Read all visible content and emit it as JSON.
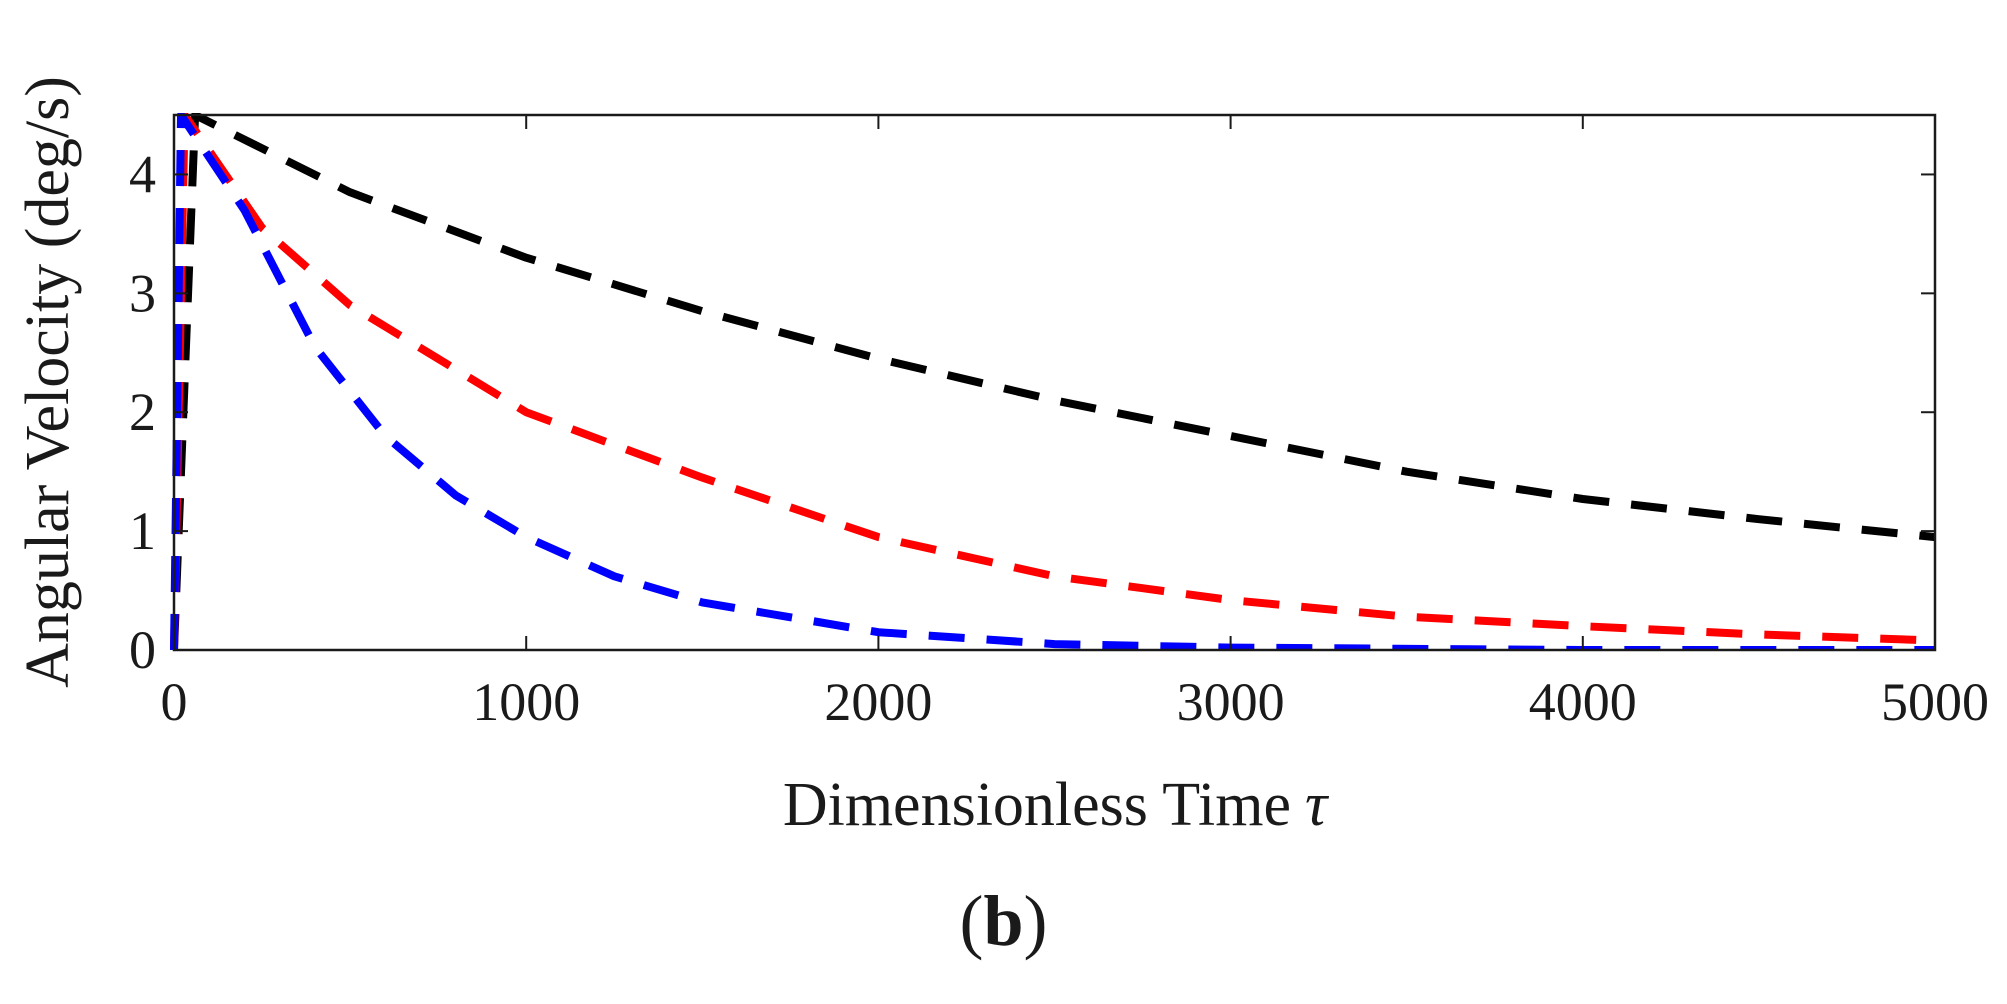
{
  "chart_data": {
    "type": "line",
    "title": "",
    "xlabel": "Dimensionless Time",
    "xlabel_symbol": "τ",
    "ylabel": "Angular Velocity (deg/s)",
    "xlim": [
      0,
      5000
    ],
    "ylim": [
      0,
      4.5
    ],
    "xticks": [
      0,
      1000,
      2000,
      3000,
      4000,
      5000
    ],
    "yticks": [
      0,
      1,
      2,
      3,
      4
    ],
    "grid": false,
    "legend": "none",
    "series": [
      {
        "name": "black dashed",
        "color": "#000000",
        "x": [
          0,
          60,
          500,
          1000,
          1500,
          2000,
          2500,
          3000,
          3500,
          4000,
          4500,
          5000
        ],
        "y": [
          0,
          4.5,
          3.85,
          3.3,
          2.85,
          2.45,
          2.1,
          1.8,
          1.5,
          1.27,
          1.1,
          0.95
        ]
      },
      {
        "name": "red dashed",
        "color": "#ff0000",
        "x": [
          0,
          30,
          250,
          500,
          750,
          1000,
          1500,
          2000,
          2500,
          3000,
          3500,
          4000,
          4500,
          5000
        ],
        "y": [
          0,
          4.5,
          3.55,
          2.9,
          2.45,
          2.0,
          1.45,
          0.95,
          0.62,
          0.42,
          0.28,
          0.2,
          0.13,
          0.08
        ]
      },
      {
        "name": "blue dashed",
        "color": "#0000ff",
        "x": [
          0,
          20,
          200,
          400,
          600,
          800,
          1000,
          1250,
          1500,
          2000,
          2500,
          3000,
          4000,
          5000
        ],
        "y": [
          0,
          4.5,
          3.7,
          2.55,
          1.8,
          1.3,
          0.95,
          0.62,
          0.4,
          0.15,
          0.05,
          0.02,
          0.0,
          0.0
        ]
      }
    ]
  },
  "panel": {
    "open": "(",
    "letter": "b",
    "close": ")"
  }
}
